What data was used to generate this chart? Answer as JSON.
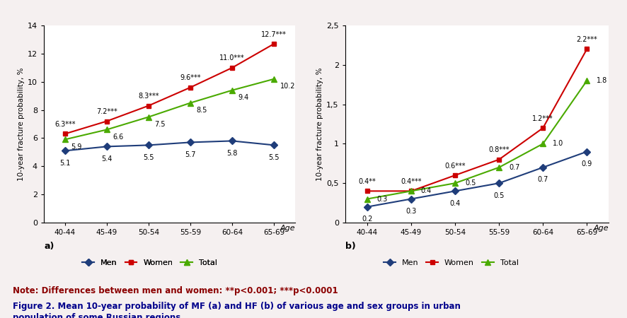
{
  "categories": [
    "40-44",
    "45-49",
    "50-54",
    "55-59",
    "60-64",
    "65-69"
  ],
  "chart_a": {
    "men": [
      5.1,
      5.4,
      5.5,
      5.7,
      5.8,
      5.5
    ],
    "women": [
      6.3,
      7.2,
      8.3,
      9.6,
      11.0,
      12.7
    ],
    "total": [
      5.9,
      6.6,
      7.5,
      8.5,
      9.4,
      10.2
    ],
    "women_labels": [
      "6.3***",
      "7.2***",
      "8.3***",
      "9.6***",
      "11.0***",
      "12.7***"
    ],
    "men_labels": [
      "5.1",
      "5.4",
      "5.5",
      "5.7",
      "5.8",
      "5.5"
    ],
    "total_labels": [
      "5.9",
      "6.6",
      "7.5",
      "8.5",
      "9.4",
      "10.2"
    ],
    "ylabel": "10-year fracture probability, %",
    "ylim": [
      0,
      14
    ],
    "yticks": [
      0,
      2,
      4,
      6,
      8,
      10,
      12,
      14
    ],
    "label": "a)"
  },
  "chart_b": {
    "men": [
      0.2,
      0.3,
      0.4,
      0.5,
      0.7,
      0.9
    ],
    "women": [
      0.4,
      0.4,
      0.6,
      0.8,
      1.2,
      2.2
    ],
    "total": [
      0.3,
      0.4,
      0.5,
      0.7,
      1.0,
      1.8
    ],
    "women_labels": [
      "0.4**",
      "0.4***",
      "0.6***",
      "0.8***",
      "1.2***",
      "2.2***"
    ],
    "men_labels": [
      "0.2",
      "0.3",
      "0.4",
      "0.5",
      "0.7",
      "0.9"
    ],
    "total_labels": [
      "0.3",
      "0.4",
      "0.5",
      "0.7",
      "1.0",
      "1.8"
    ],
    "ylabel": "10-year fracture probability, %",
    "ylim": [
      0,
      2.5
    ],
    "yticks": [
      0,
      0.5,
      1.0,
      1.5,
      2.0,
      2.5
    ],
    "ytick_labels": [
      "0",
      "0,5",
      "1",
      "1,5",
      "2",
      "2,5"
    ],
    "label": "b)"
  },
  "colors": {
    "men": "#1f3d7a",
    "women": "#cc0000",
    "total": "#4aaa00"
  },
  "note_text": "Note: Differences between men and women: **p<0.001; ***p<0.0001",
  "figure_text": "Figure 2. Mean 10-year probability of MF (a) and HF (b) of various age and sex groups in urban\npopulation of some Russian regions",
  "background_color": "#f5f0f0",
  "plot_bg_color": "#ffffff"
}
